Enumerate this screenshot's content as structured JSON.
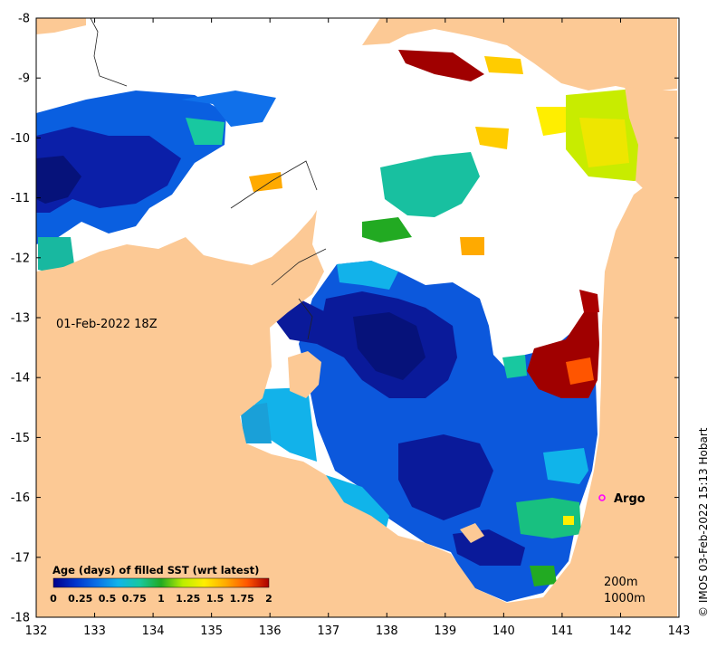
{
  "map": {
    "date_label": "01-Feb-2022 18Z",
    "credit": "© IMOS 03-Feb-2022 15:13 Hobart",
    "argo_label": "Argo",
    "depth_labels": [
      "200m",
      "1000m"
    ],
    "lon_ticks": [
      "132",
      "133",
      "134",
      "135",
      "136",
      "137",
      "138",
      "139",
      "140",
      "141",
      "142",
      "143"
    ],
    "lat_ticks": [
      "-8",
      "-9",
      "-10",
      "-11",
      "-12",
      "-13",
      "-14",
      "-15",
      "-16",
      "-17",
      "-18"
    ],
    "lon_range": [
      132,
      143
    ],
    "lat_range": [
      -18,
      -8
    ],
    "colorbar": {
      "title": "Age (days) of filled SST (wrt latest)",
      "tick_labels": [
        "0",
        "0.25",
        "0.5",
        "0.75",
        "1",
        "1.25",
        "1.5",
        "1.75",
        "2"
      ],
      "range": [
        0,
        2
      ],
      "stops": [
        "#00008b",
        "#0033cc",
        "#0a6fe6",
        "#10b4ea",
        "#18c8a0",
        "#22aa22",
        "#bbee00",
        "#ffee00",
        "#ffaa00",
        "#ff5500",
        "#aa0000"
      ]
    },
    "colors": {
      "land": "#fcc995",
      "no_data": "#ffffff",
      "argo_marker": "#ff00ff"
    }
  }
}
